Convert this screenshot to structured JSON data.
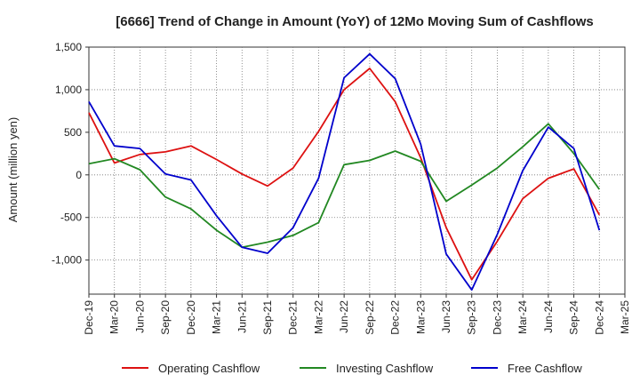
{
  "chart_data": {
    "type": "line",
    "title": "[6666]  Trend of Change in Amount (YoY) of 12Mo Moving Sum of Cashflows",
    "xlabel": "",
    "ylabel": "Amount (million yen)",
    "ylim": [
      -1400,
      1500
    ],
    "yticks": [
      1500,
      1000,
      500,
      0,
      -500,
      -1000
    ],
    "ytick_labels": [
      "1,500",
      "1,000",
      "500",
      "0",
      "-500",
      "-1,000"
    ],
    "grid": true,
    "legend_position": "bottom",
    "categories": [
      "Dec-19",
      "Mar-20",
      "Jun-20",
      "Sep-20",
      "Dec-20",
      "Mar-21",
      "Jun-21",
      "Sep-21",
      "Dec-21",
      "Mar-22",
      "Jun-22",
      "Sep-22",
      "Dec-22",
      "Mar-23",
      "Jun-23",
      "Sep-23",
      "Dec-23",
      "Mar-24",
      "Jun-24",
      "Sep-24",
      "Dec-24",
      "Mar-25"
    ],
    "series": [
      {
        "name": "Operating Cashflow",
        "color": "#dd1111",
        "values": [
          730,
          140,
          240,
          270,
          340,
          180,
          10,
          -130,
          80,
          510,
          1000,
          1250,
          860,
          200,
          -620,
          -1230,
          -780,
          -280,
          -40,
          70,
          -470,
          null
        ]
      },
      {
        "name": "Investing Cashflow",
        "color": "#228822",
        "values": [
          130,
          190,
          60,
          -260,
          -400,
          -650,
          -850,
          -790,
          -710,
          -560,
          120,
          170,
          280,
          160,
          -310,
          -120,
          80,
          330,
          600,
          250,
          -170,
          null
        ]
      },
      {
        "name": "Free Cashflow",
        "color": "#0000cc",
        "values": [
          860,
          340,
          310,
          10,
          -60,
          -480,
          -850,
          -920,
          -620,
          -40,
          1140,
          1420,
          1130,
          360,
          -930,
          -1350,
          -700,
          50,
          560,
          310,
          -650,
          null
        ]
      }
    ]
  }
}
